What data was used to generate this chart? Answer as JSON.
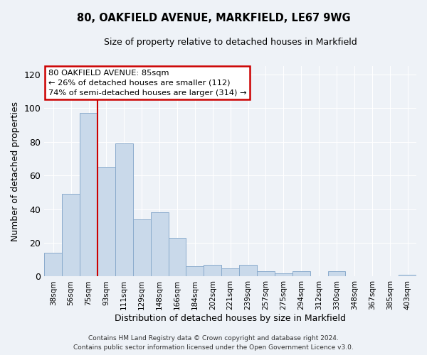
{
  "title1": "80, OAKFIELD AVENUE, MARKFIELD, LE67 9WG",
  "title2": "Size of property relative to detached houses in Markfield",
  "xlabel": "Distribution of detached houses by size in Markfield",
  "ylabel": "Number of detached properties",
  "categories": [
    "38sqm",
    "56sqm",
    "75sqm",
    "93sqm",
    "111sqm",
    "129sqm",
    "148sqm",
    "166sqm",
    "184sqm",
    "202sqm",
    "221sqm",
    "239sqm",
    "257sqm",
    "275sqm",
    "294sqm",
    "312sqm",
    "330sqm",
    "348sqm",
    "367sqm",
    "385sqm",
    "403sqm"
  ],
  "values": [
    14,
    49,
    97,
    65,
    79,
    34,
    38,
    23,
    6,
    7,
    5,
    7,
    3,
    2,
    3,
    0,
    3,
    0,
    0,
    0,
    1
  ],
  "bar_color": "#c9d9ea",
  "bar_edge_color": "#8aabcc",
  "background_color": "#eef2f7",
  "grid_color": "#ffffff",
  "vline_x": 2.5,
  "vline_color": "#cc0000",
  "ylim": [
    0,
    125
  ],
  "yticks": [
    0,
    20,
    40,
    60,
    80,
    100,
    120
  ],
  "annotation_title": "80 OAKFIELD AVENUE: 85sqm",
  "annotation_line1": "← 26% of detached houses are smaller (112)",
  "annotation_line2": "74% of semi-detached houses are larger (314) →",
  "annotation_box_color": "#ffffff",
  "annotation_edge_color": "#cc0000",
  "footer1": "Contains HM Land Registry data © Crown copyright and database right 2024.",
  "footer2": "Contains public sector information licensed under the Open Government Licence v3.0."
}
